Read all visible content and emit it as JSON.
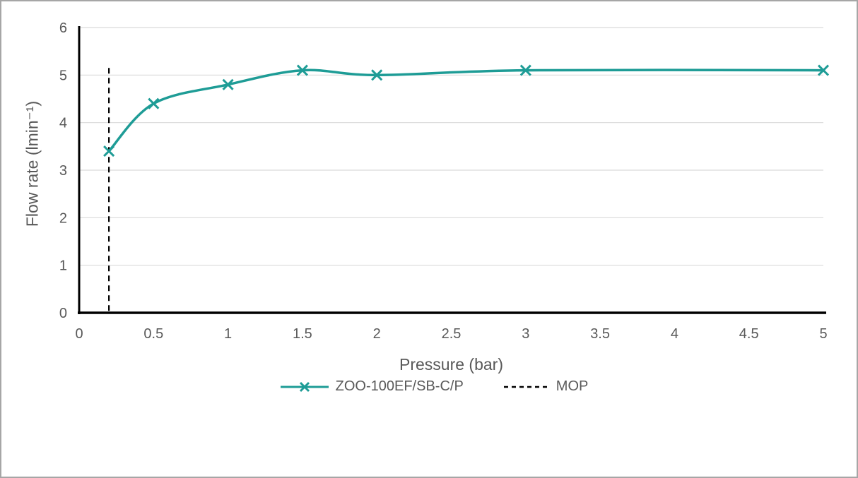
{
  "window": {
    "background_color": "#ffffff",
    "border_color": "#a6a6a6"
  },
  "chart_data": {
    "type": "line",
    "title": "",
    "xlabel": "Pressure (bar)",
    "ylabel": "Flow rate (lmin⁻¹)",
    "xlim": [
      0,
      5
    ],
    "ylim": [
      0,
      6
    ],
    "x_ticks": [
      "0",
      "0.5",
      "1",
      "1.5",
      "2",
      "2.5",
      "3",
      "3.5",
      "4",
      "4.5",
      "5"
    ],
    "y_ticks": [
      "0",
      "1",
      "2",
      "3",
      "4",
      "5",
      "6"
    ],
    "grid": "horizontal-only",
    "legend_position": "bottom-center",
    "axis_color": "#000000",
    "gridline_color": "#d9d9d9",
    "text_color": "#595959",
    "series": [
      {
        "name": "ZOO-100EF/SB-C/P",
        "type": "smooth-line",
        "marker": "x",
        "color": "#1E9C96",
        "points": [
          [
            0.2,
            3.4
          ],
          [
            0.5,
            4.4
          ],
          [
            1,
            4.8
          ],
          [
            1.5,
            5.1
          ],
          [
            2,
            5.0
          ],
          [
            3,
            5.1
          ],
          [
            5,
            5.1
          ]
        ]
      },
      {
        "name": "MOP",
        "type": "vertical-dashed-line",
        "color": "#000000",
        "x": 0.2,
        "y_span": [
          0,
          5.15
        ]
      }
    ]
  }
}
